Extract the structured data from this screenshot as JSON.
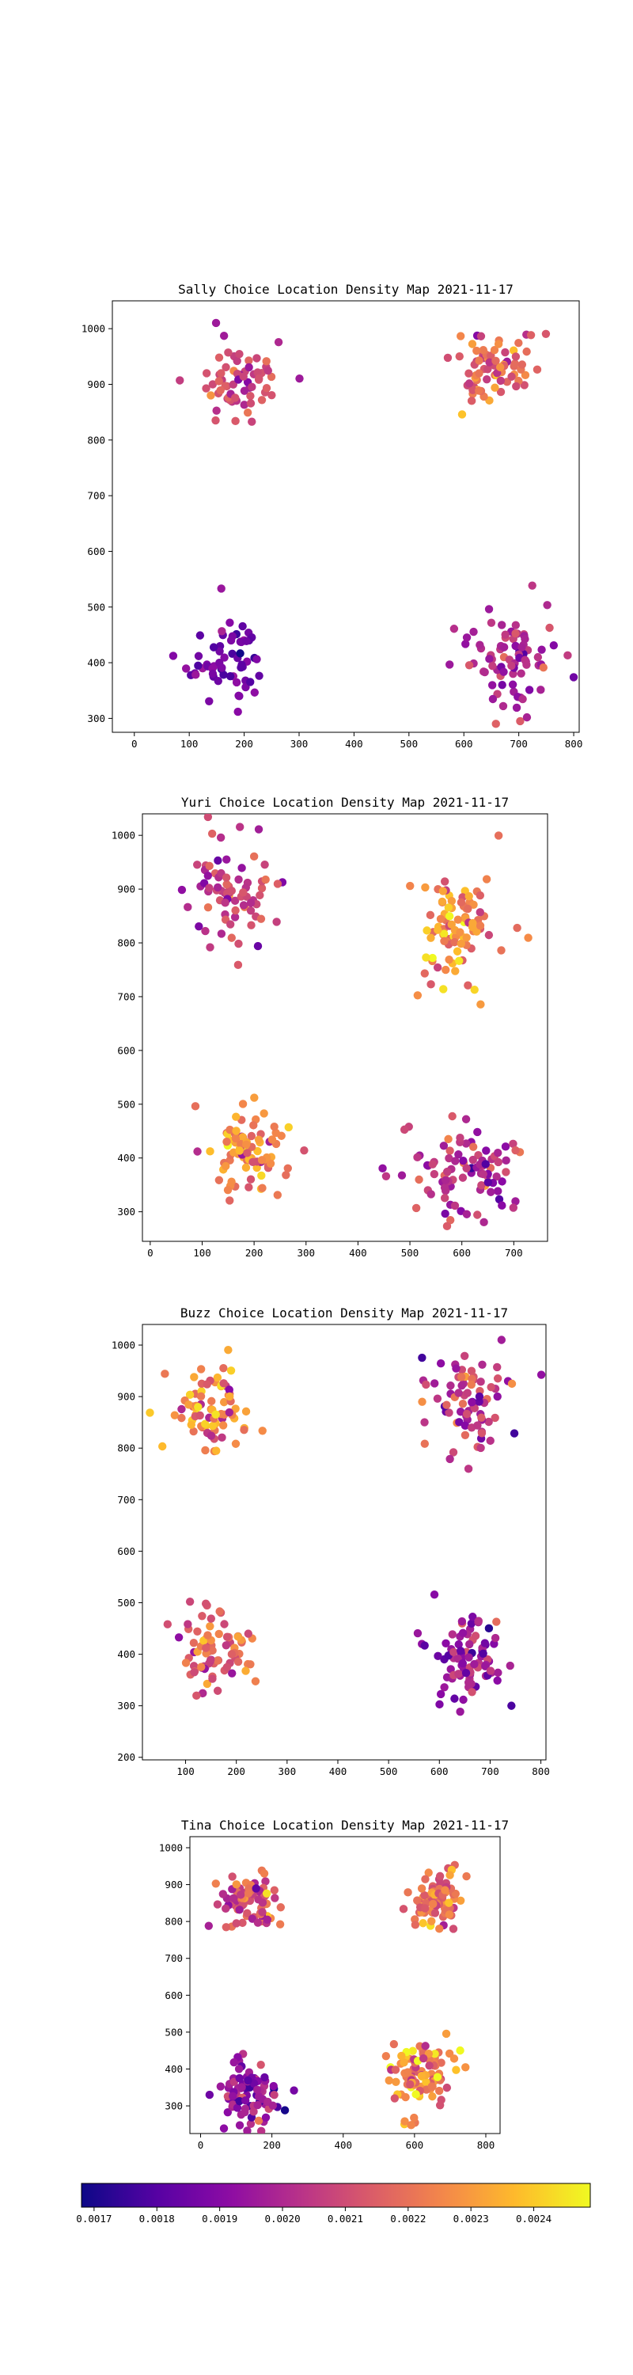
{
  "chart_data": [
    {
      "type": "scatter",
      "title": "Sally Choice Location Density Map 2021-11-17",
      "xlim": [
        -40,
        810
      ],
      "ylim": [
        275,
        1050
      ],
      "xticks": [
        0,
        100,
        200,
        300,
        400,
        500,
        600,
        700,
        800
      ],
      "yticks": [
        300,
        400,
        500,
        600,
        700,
        800,
        900,
        1000
      ],
      "clusters": [
        {
          "cx": 190,
          "cy": 905,
          "sx": 38,
          "sy": 35,
          "n": 65,
          "density_mean": 0.0021,
          "density_sd": 9e-05
        },
        {
          "cx": 660,
          "cy": 930,
          "sx": 38,
          "sy": 32,
          "n": 75,
          "density_mean": 0.00215,
          "density_sd": 0.0001
        },
        {
          "cx": 165,
          "cy": 390,
          "sx": 36,
          "sy": 38,
          "n": 60,
          "density_mean": 0.00185,
          "density_sd": 6e-05
        },
        {
          "cx": 690,
          "cy": 405,
          "sx": 40,
          "sy": 45,
          "n": 80,
          "density_mean": 0.002,
          "density_sd": 8e-05
        }
      ]
    },
    {
      "type": "scatter",
      "title": "Yuri Choice Location Density Map 2021-11-17",
      "xlim": [
        -15,
        765
      ],
      "ylim": [
        245,
        1040
      ],
      "xticks": [
        0,
        100,
        200,
        300,
        400,
        500,
        600,
        700
      ],
      "yticks": [
        300,
        400,
        500,
        600,
        700,
        800,
        900,
        1000
      ],
      "clusters": [
        {
          "cx": 155,
          "cy": 890,
          "sx": 45,
          "sy": 45,
          "n": 75,
          "density_mean": 0.00205,
          "density_sd": 0.0001
        },
        {
          "cx": 600,
          "cy": 830,
          "sx": 40,
          "sy": 55,
          "n": 90,
          "density_mean": 0.00225,
          "density_sd": 0.00012
        },
        {
          "cx": 185,
          "cy": 405,
          "sx": 40,
          "sy": 40,
          "n": 85,
          "density_mean": 0.00225,
          "density_sd": 0.00012
        },
        {
          "cx": 610,
          "cy": 370,
          "sx": 55,
          "sy": 55,
          "n": 95,
          "density_mean": 0.002,
          "density_sd": 0.00012
        }
      ]
    },
    {
      "type": "scatter",
      "title": "Buzz Choice Location Density Map 2021-11-17",
      "xlim": [
        15,
        810
      ],
      "ylim": [
        195,
        1040
      ],
      "xticks": [
        100,
        200,
        300,
        400,
        500,
        600,
        700,
        800
      ],
      "yticks": [
        200,
        300,
        400,
        500,
        600,
        700,
        800,
        900,
        1000
      ],
      "clusters": [
        {
          "cx": 150,
          "cy": 880,
          "sx": 35,
          "sy": 40,
          "n": 80,
          "density_mean": 0.00225,
          "density_sd": 0.00012
        },
        {
          "cx": 650,
          "cy": 880,
          "sx": 40,
          "sy": 50,
          "n": 80,
          "density_mean": 0.00205,
          "density_sd": 0.00012
        },
        {
          "cx": 160,
          "cy": 400,
          "sx": 38,
          "sy": 42,
          "n": 80,
          "density_mean": 0.00215,
          "density_sd": 0.0001
        },
        {
          "cx": 650,
          "cy": 390,
          "sx": 40,
          "sy": 50,
          "n": 85,
          "density_mean": 0.00195,
          "density_sd": 0.0001
        }
      ]
    },
    {
      "type": "scatter",
      "title": "Tina Choice Location Density Map 2021-11-17",
      "xlim": [
        -30,
        840
      ],
      "ylim": [
        225,
        1030
      ],
      "xticks": [
        0,
        200,
        400,
        600,
        800
      ],
      "yticks": [
        300,
        400,
        500,
        600,
        700,
        800,
        900,
        1000
      ],
      "clusters": [
        {
          "cx": 140,
          "cy": 855,
          "sx": 40,
          "sy": 35,
          "n": 85,
          "density_mean": 0.0021,
          "density_sd": 0.0001
        },
        {
          "cx": 660,
          "cy": 860,
          "sx": 35,
          "sy": 40,
          "n": 85,
          "density_mean": 0.0022,
          "density_sd": 0.0001
        },
        {
          "cx": 140,
          "cy": 335,
          "sx": 40,
          "sy": 45,
          "n": 85,
          "density_mean": 0.00195,
          "density_sd": 0.0001
        },
        {
          "cx": 620,
          "cy": 385,
          "sx": 50,
          "sy": 50,
          "n": 95,
          "density_mean": 0.00225,
          "density_sd": 0.00012
        }
      ]
    }
  ],
  "colorbar": {
    "colormap": "plasma",
    "vmin": 0.00168,
    "vmax": 0.00249,
    "ticks": [
      0.0017,
      0.0018,
      0.0019,
      0.002,
      0.0021,
      0.0022,
      0.0023,
      0.0024
    ],
    "tick_labels": [
      "0.0017",
      "0.0018",
      "0.0019",
      "0.0020",
      "0.0021",
      "0.0022",
      "0.0023",
      "0.0024"
    ]
  }
}
